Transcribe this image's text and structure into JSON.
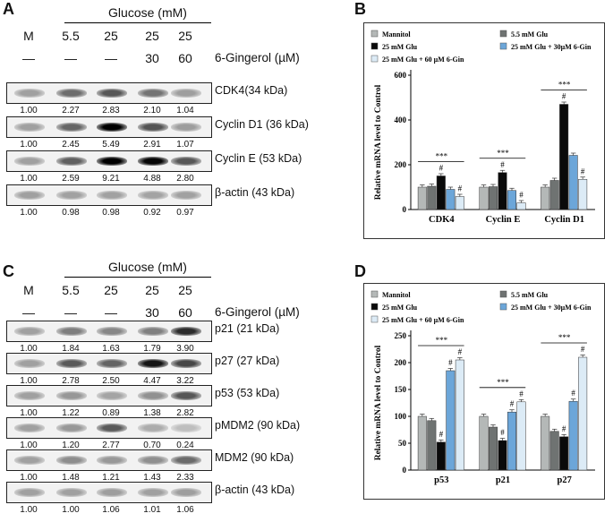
{
  "panels": {
    "A": "A",
    "B": "B",
    "C": "C",
    "D": "D"
  },
  "header": {
    "glucose_label": "Glucose (mM)",
    "lanes": [
      "M",
      "5.5",
      "25",
      "25",
      "25"
    ],
    "gingerol_values": [
      "—",
      "—",
      "—",
      "30",
      "60"
    ],
    "gingerol_label": "6-Gingerol (µM)"
  },
  "blots_A": [
    {
      "label": "CDK4(34 kDa)",
      "values": [
        "1.00",
        "2.27",
        "2.83",
        "2.10",
        "1.04"
      ]
    },
    {
      "label": "Cyclin D1 (36 kDa)",
      "values": [
        "1.00",
        "2.45",
        "5.49",
        "2.91",
        "1.07"
      ]
    },
    {
      "label": "Cyclin E (53 kDa)",
      "values": [
        "1.00",
        "2.59",
        "9.21",
        "4.88",
        "2.80"
      ]
    },
    {
      "label": "β-actin (43 kDa)",
      "values": [
        "1.00",
        "0.98",
        "0.98",
        "0.92",
        "0.97"
      ]
    }
  ],
  "blots_C": [
    {
      "label": "p21 (21 kDa)",
      "values": [
        "1.00",
        "1.84",
        "1.63",
        "1.79",
        "3.90"
      ]
    },
    {
      "label": "p27 (27 kDa)",
      "values": [
        "1.00",
        "2.78",
        "2.50",
        "4.47",
        "3.22"
      ]
    },
    {
      "label": "p53 (53 kDa)",
      "values": [
        "1.00",
        "1.22",
        "0.89",
        "1.38",
        "2.82"
      ]
    },
    {
      "label": "pMDM2 (90 kDa)",
      "values": [
        "1.00",
        "1.20",
        "2.77",
        "0.70",
        "0.24"
      ]
    },
    {
      "label": "MDM2 (90 kDa)",
      "values": [
        "1.00",
        "1.48",
        "1.21",
        "1.43",
        "2.33"
      ]
    },
    {
      "label": "β-actin (43 kDa)",
      "values": [
        "1.00",
        "1.00",
        "1.06",
        "1.01",
        "1.06"
      ]
    }
  ],
  "legend": [
    "Mannitol",
    "5.5 mM Glu",
    "25 mM Glu",
    "25 mM Glu + 30µM 6-Gin",
    "25 mM Glu + 60 µM 6-Gin"
  ],
  "colors": {
    "Mannitol": "#b4b8b7",
    "5.5 mM Glu": "#6f7372",
    "25 mM Glu": "#0a0a0a",
    "30": "#6ca6d9",
    "60": "#dcebf6"
  },
  "chart_data": [
    {
      "type": "bar",
      "panel": "B",
      "ylabel": "Relative mRNA level to Control",
      "ylim": [
        0,
        600
      ],
      "yticks": [
        "0",
        "200",
        "400",
        "600"
      ],
      "categories": [
        "CDK4",
        "Cyclin E",
        "Cyclin D1"
      ],
      "series": [
        {
          "name": "Mannitol",
          "values": [
            100,
            100,
            100
          ]
        },
        {
          "name": "5.5 mM Glu",
          "values": [
            104,
            102,
            130
          ]
        },
        {
          "name": "25 mM Glu",
          "values": [
            150,
            165,
            470
          ]
        },
        {
          "name": "25 mM Glu + 30µM 6-Gin",
          "values": [
            90,
            85,
            242
          ]
        },
        {
          "name": "25 mM Glu + 60 µM 6-Gin",
          "values": [
            58,
            30,
            135
          ]
        }
      ],
      "significance": "***",
      "hash_marks": "#"
    },
    {
      "type": "bar",
      "panel": "D",
      "ylabel": "Relative mRNA level to Control",
      "ylim": [
        0,
        250
      ],
      "yticks": [
        "0",
        "50",
        "100",
        "150",
        "200",
        "250"
      ],
      "categories": [
        "p53",
        "p21",
        "p27"
      ],
      "series": [
        {
          "name": "Mannitol",
          "values": [
            100,
            100,
            100
          ]
        },
        {
          "name": "5.5 mM Glu",
          "values": [
            92,
            80,
            72
          ]
        },
        {
          "name": "25 mM Glu",
          "values": [
            52,
            55,
            62
          ]
        },
        {
          "name": "25 mM Glu + 30µM 6-Gin",
          "values": [
            185,
            108,
            128
          ]
        },
        {
          "name": "25 mM Glu + 60 µM 6-Gin",
          "values": [
            205,
            127,
            210
          ]
        }
      ],
      "significance": "***",
      "hash_marks": "#"
    }
  ]
}
